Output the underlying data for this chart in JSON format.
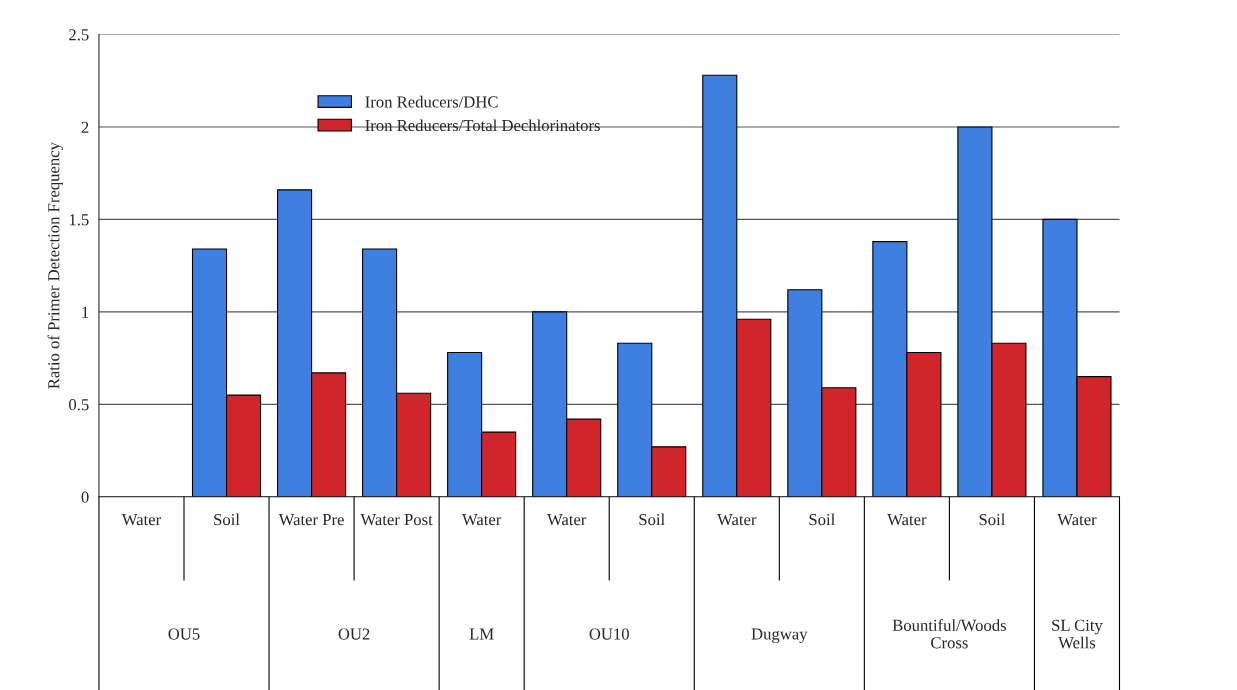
{
  "chart_data": {
    "type": "bar",
    "ylabel": "Ratio of Primer Detection Frequency",
    "categories": [
      "Water",
      "Soil",
      "Water Pre",
      "Water Post",
      "Water",
      "Water",
      "Soil",
      "Water",
      "Soil",
      "Water",
      "Soil",
      "Water"
    ],
    "series": [
      {
        "name": "Iron Reducers/DHC",
        "color": "#3f7fe0",
        "values": [
          null,
          1.34,
          1.66,
          1.34,
          0.78,
          1.0,
          0.83,
          2.28,
          1.12,
          1.38,
          2.0,
          1.5
        ]
      },
      {
        "name": "Iron Reducers/Total Dechlorinators",
        "color": "#d0262b",
        "values": [
          null,
          0.55,
          0.67,
          0.56,
          0.35,
          0.42,
          0.27,
          0.96,
          0.59,
          0.78,
          0.83,
          0.65
        ]
      }
    ],
    "annotations": [
      "OU5",
      "OU2",
      "LM",
      "OU10",
      "Dugway",
      "Bountiful/Woods Cross",
      "SL City Wells"
    ],
    "ylim": [
      0,
      2.5
    ],
    "yticks": [
      0,
      0.5,
      1,
      1.5,
      2,
      2.5
    ],
    "grid": "y",
    "legend": "top left"
  }
}
